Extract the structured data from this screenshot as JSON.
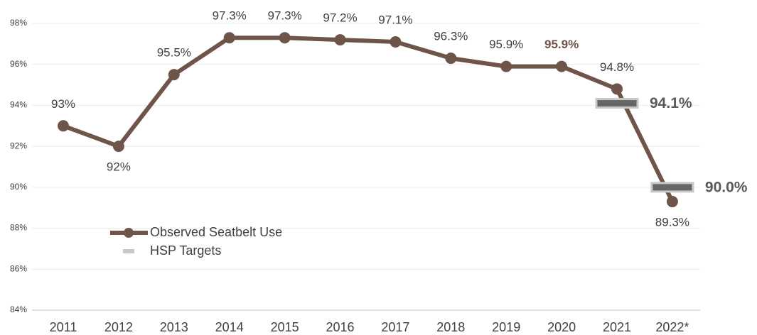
{
  "chart_data": {
    "type": "line",
    "categories": [
      "2011",
      "2012",
      "2013",
      "2014",
      "2015",
      "2016",
      "2017",
      "2018",
      "2019",
      "2020",
      "2021",
      "2022*"
    ],
    "series": [
      {
        "name": "Observed Seatbelt Use",
        "color": "#6f5549",
        "values": [
          93,
          92,
          95.5,
          97.3,
          97.3,
          97.2,
          97.1,
          96.3,
          95.9,
          95.9,
          94.8,
          89.3
        ],
        "value_labels": [
          "93%",
          "92%",
          "95.5%",
          "97.3%",
          "97.3%",
          "97.2%",
          "97.1%",
          "96.3%",
          "95.9%",
          "95.9%",
          "94.8%",
          "89.3%"
        ]
      },
      {
        "name": "HSP Targets",
        "color": "#666666",
        "marker": "bar",
        "values": [
          null,
          null,
          null,
          null,
          null,
          null,
          null,
          null,
          null,
          null,
          94.1,
          90.0
        ],
        "value_labels": [
          null,
          null,
          null,
          null,
          null,
          null,
          null,
          null,
          null,
          null,
          "94.1%",
          "90.0%"
        ]
      }
    ],
    "highlight_category": "2020",
    "ylim": [
      84,
      98
    ],
    "yticks": [
      {
        "value": 84,
        "label": "84%"
      },
      {
        "value": 86,
        "label": "86%"
      },
      {
        "value": 88,
        "label": "88%"
      },
      {
        "value": 90,
        "label": "90%"
      },
      {
        "value": 92,
        "label": "92%"
      },
      {
        "value": 94,
        "label": "94%"
      },
      {
        "value": 96,
        "label": "96%"
      },
      {
        "value": 98,
        "label": "98%"
      }
    ],
    "grid": true,
    "legend": "lower left"
  }
}
